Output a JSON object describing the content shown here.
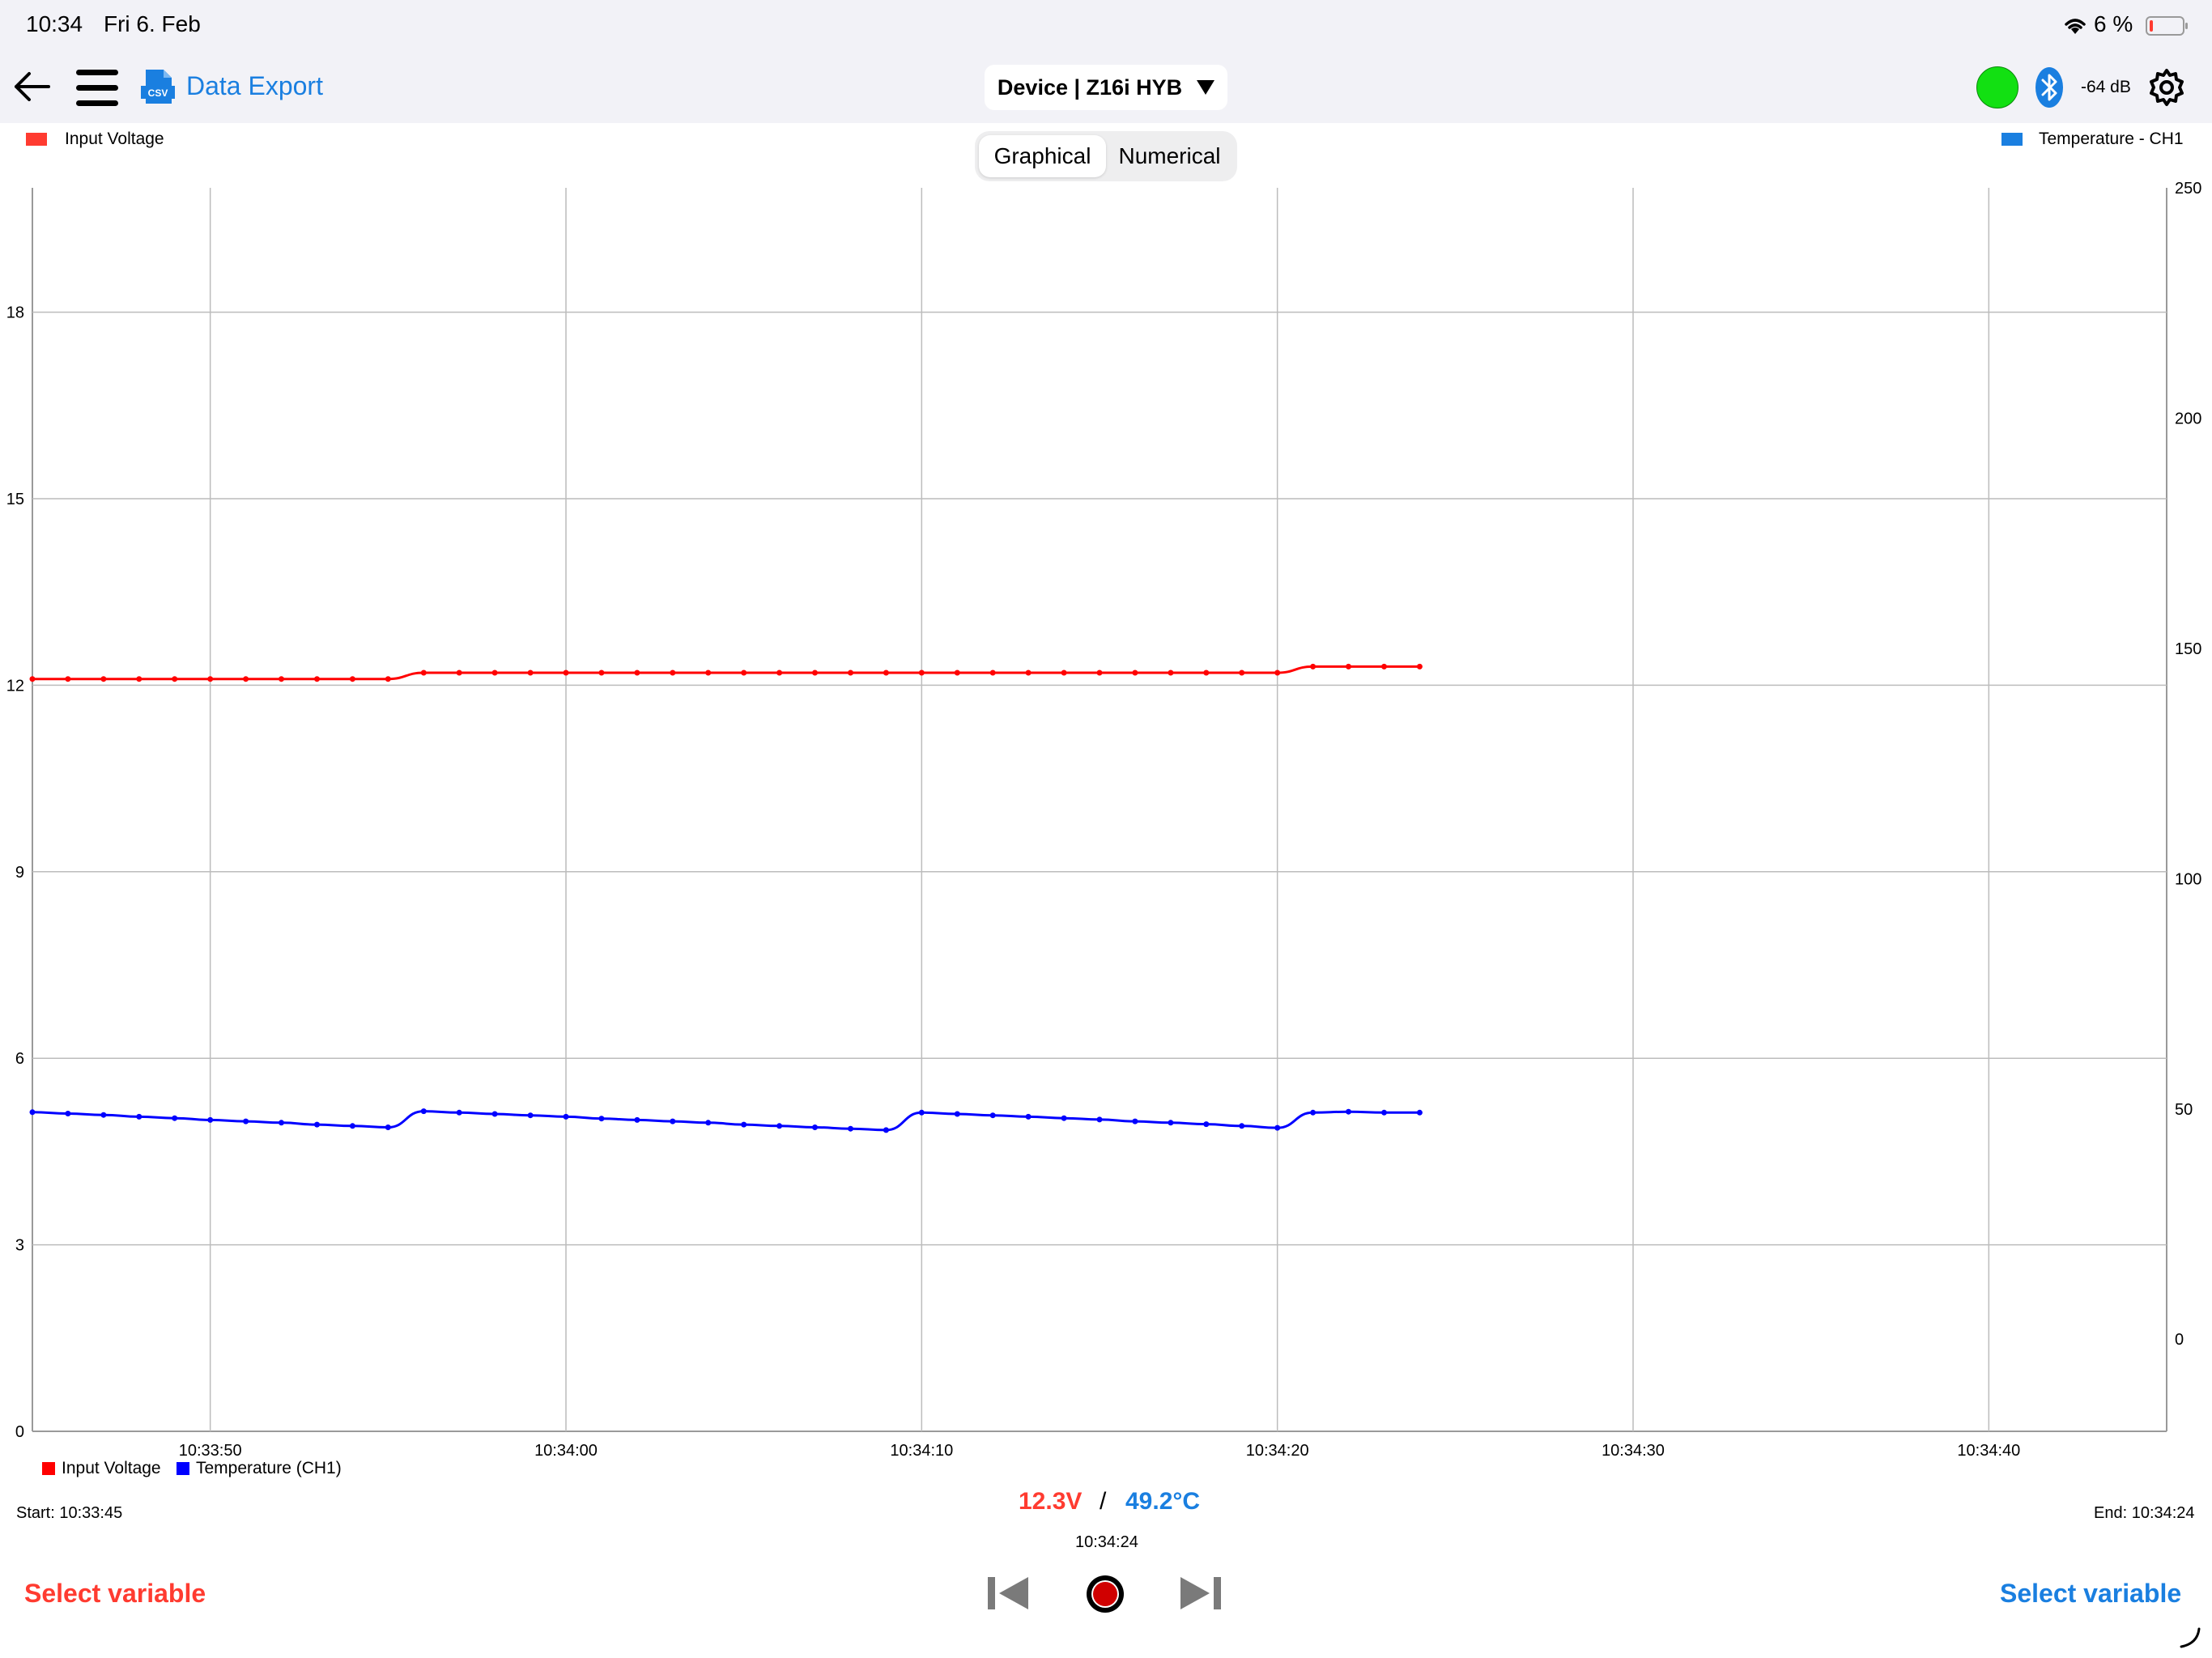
{
  "status_bar": {
    "time": "10:34",
    "date": "Fri 6. Feb",
    "battery": "6 %"
  },
  "toolbar": {
    "data_export_label": "Data Export",
    "csv_label": "CSV",
    "device_label": "Device | Z16i HYB",
    "signal_label": "-64 dB",
    "connection_color": "#12e012",
    "accent_color": "#1a7fe0"
  },
  "view_toggle": {
    "options": [
      "Graphical",
      "Numerical"
    ],
    "selected": "Graphical"
  },
  "legend_top": {
    "left_label": "Input Voltage",
    "right_label": "Temperature - CH1"
  },
  "legend_bottom": {
    "items": [
      "Input Voltage",
      "Temperature (CH1)"
    ]
  },
  "readout": {
    "voltage": "12.3V",
    "separator": "/",
    "temperature": "49.2°C",
    "cursor_time": "10:34:24"
  },
  "range": {
    "start": "Start: 10:33:45",
    "end": "End: 10:34:24"
  },
  "bottom_controls": {
    "select_left": "Select variable",
    "select_right": "Select variable"
  },
  "chart_data": {
    "type": "line",
    "x_unit": "time (10:33:45 – 10:34:24, 1 s samples)",
    "x": [
      "10:33:45",
      "10:33:46",
      "10:33:47",
      "10:33:48",
      "10:33:49",
      "10:33:50",
      "10:33:51",
      "10:33:52",
      "10:33:53",
      "10:33:54",
      "10:33:55",
      "10:33:56",
      "10:33:57",
      "10:33:58",
      "10:33:59",
      "10:34:00",
      "10:34:01",
      "10:34:02",
      "10:34:03",
      "10:34:04",
      "10:34:05",
      "10:34:06",
      "10:34:07",
      "10:34:08",
      "10:34:09",
      "10:34:10",
      "10:34:11",
      "10:34:12",
      "10:34:13",
      "10:34:14",
      "10:34:15",
      "10:34:16",
      "10:34:17",
      "10:34:18",
      "10:34:19",
      "10:34:20",
      "10:34:21",
      "10:34:22",
      "10:34:23",
      "10:34:24"
    ],
    "x_ticks": [
      "10:33:50",
      "10:34:00",
      "10:34:10",
      "10:34:20",
      "10:34:30",
      "10:34:40"
    ],
    "xlim": [
      "10:33:45",
      "10:34:45"
    ],
    "series": [
      {
        "name": "Input Voltage",
        "axis": "left",
        "color": "#ff0000",
        "values": [
          12.1,
          12.1,
          12.1,
          12.1,
          12.1,
          12.1,
          12.1,
          12.1,
          12.1,
          12.1,
          12.1,
          12.2,
          12.2,
          12.2,
          12.2,
          12.2,
          12.2,
          12.2,
          12.2,
          12.2,
          12.2,
          12.2,
          12.2,
          12.2,
          12.2,
          12.2,
          12.2,
          12.2,
          12.2,
          12.2,
          12.2,
          12.2,
          12.2,
          12.2,
          12.2,
          12.2,
          12.3,
          12.3,
          12.3,
          12.3
        ]
      },
      {
        "name": "Temperature (CH1)",
        "axis": "right",
        "color": "#0000ff",
        "values": [
          49.3,
          49.0,
          48.7,
          48.3,
          48.0,
          47.6,
          47.3,
          47.0,
          46.6,
          46.3,
          46.0,
          49.5,
          49.2,
          48.9,
          48.6,
          48.3,
          47.9,
          47.6,
          47.3,
          47.0,
          46.6,
          46.3,
          46.0,
          45.7,
          45.4,
          49.2,
          48.9,
          48.6,
          48.3,
          48.0,
          47.7,
          47.3,
          47.0,
          46.7,
          46.3,
          45.9,
          49.2,
          49.4,
          49.2,
          49.2
        ]
      }
    ],
    "y_left": {
      "ylim": [
        0,
        20
      ],
      "ticks": [
        0,
        3,
        6,
        9,
        12,
        15,
        18
      ]
    },
    "y_right": {
      "ylim": [
        -20,
        250
      ],
      "ticks": [
        0,
        50,
        100,
        150,
        200,
        250
      ]
    },
    "grid": true,
    "legend": "bottom-left"
  }
}
